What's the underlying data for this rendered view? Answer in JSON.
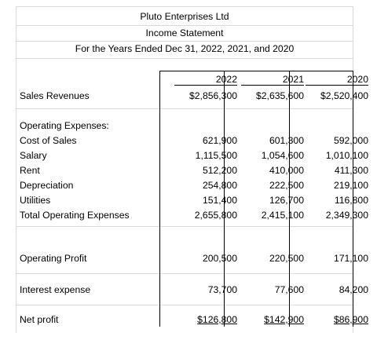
{
  "company": "Pluto Enterprises Ltd",
  "statement": "Income Statement",
  "period": "For the Years Ended Dec 31, 2022, 2021, and 2020",
  "years": [
    "2022",
    "2021",
    "2020"
  ],
  "rows": {
    "sales": {
      "label": "Sales Revenues",
      "values": [
        "$2,856,300",
        "$2,635,600",
        "$2,520,400"
      ]
    },
    "opex_heading": {
      "label": "Operating Expenses:"
    },
    "cost_of_sales": {
      "label": "Cost of Sales",
      "values": [
        "621,900",
        "601,300",
        "592,000"
      ]
    },
    "salary": {
      "label": "Salary",
      "values": [
        "1,115,500",
        "1,054,600",
        "1,010,100"
      ]
    },
    "rent": {
      "label": "Rent",
      "values": [
        "512,200",
        "410,000",
        "411,300"
      ]
    },
    "depreciation": {
      "label": "Depreciation",
      "values": [
        "254,800",
        "222,500",
        "219,100"
      ]
    },
    "utilities": {
      "label": "Utilities",
      "values": [
        "151,400",
        "126,700",
        "116,800"
      ]
    },
    "total_opex": {
      "label": "Total Operating Expenses",
      "values": [
        "2,655,800",
        "2,415,100",
        "2,349,300"
      ]
    },
    "operating_profit": {
      "label": "Operating Profit",
      "values": [
        "200,500",
        "220,500",
        "171,100"
      ]
    },
    "interest": {
      "label": "Interest expense",
      "values": [
        "73,700",
        "77,600",
        "84,200"
      ]
    },
    "net_profit": {
      "label": "Net profit",
      "values": [
        "$126,800",
        "$142,900",
        "$86,900"
      ]
    }
  }
}
